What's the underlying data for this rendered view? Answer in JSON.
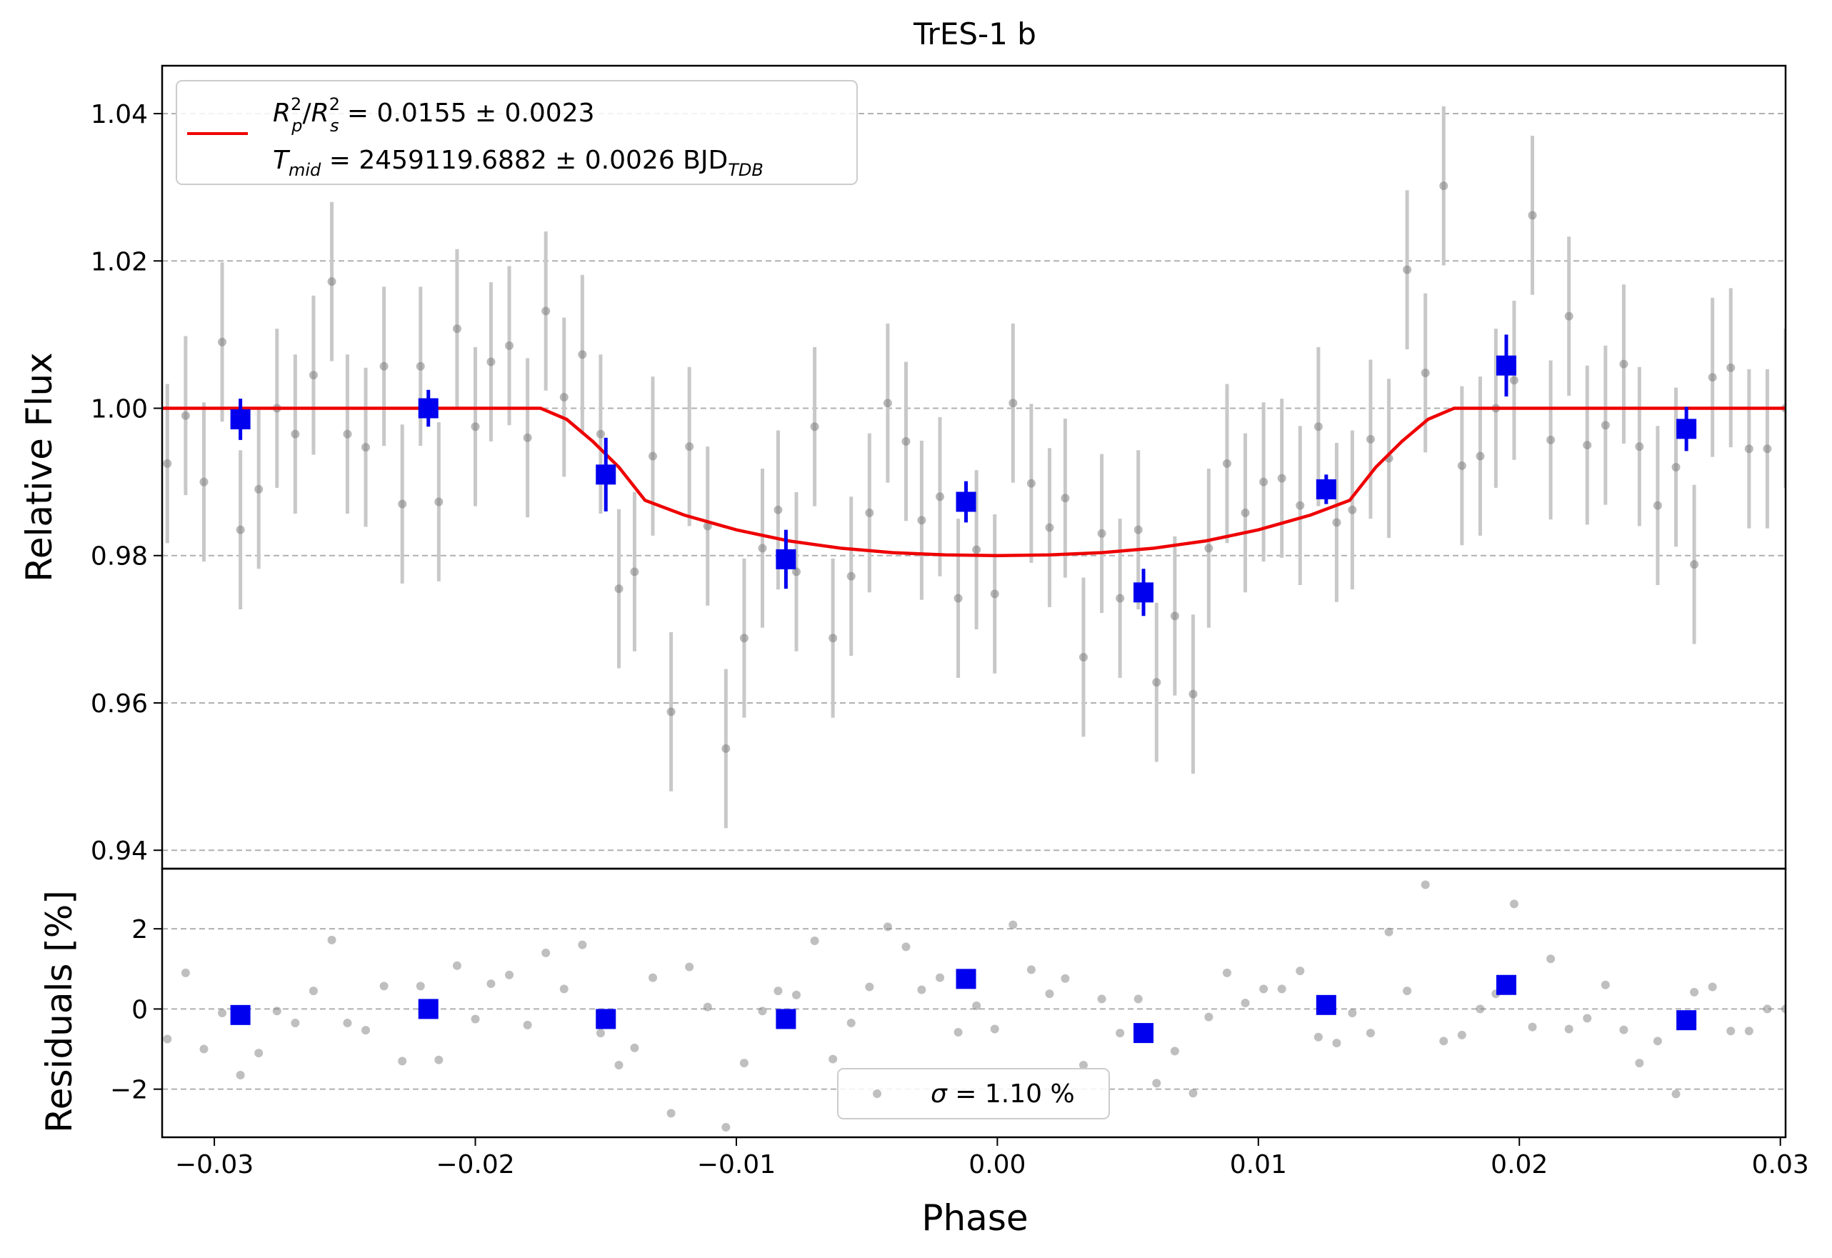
{
  "chart_data": [
    {
      "type": "scatter",
      "panel": "main",
      "title": "TrES-1 b",
      "xlabel": "",
      "ylabel": "Relative Flux",
      "xlim": [
        -0.032,
        0.0302
      ],
      "ylim": [
        0.9375,
        1.0465
      ],
      "yticks": [
        0.94,
        0.96,
        0.98,
        1.0,
        1.02,
        1.04
      ],
      "ytick_labels": [
        "0.94",
        "0.96",
        "0.98",
        "1.00",
        "1.02",
        "1.04"
      ],
      "grid": "horizontal dashed",
      "legend": {
        "placement": "top-left",
        "line1": {
          "prefix_sub1": "p",
          "prefix_sub2": "s",
          "text": " = 0.0155 ± 0.0023"
        },
        "line2": {
          "sub": "mid",
          "text": " = 2459119.6882 ± 0.0026 BJD",
          "unit_sub": "TDB"
        }
      },
      "colors": {
        "data": "#808080",
        "binned": "#0000ee",
        "model": "#ee0000",
        "grid": "#b0b0b0"
      },
      "series": [
        {
          "role": "data",
          "x": [
            -0.0318,
            -0.0311,
            -0.0304,
            -0.0297,
            -0.029,
            -0.0283,
            -0.0276,
            -0.0269,
            -0.0262,
            -0.0255,
            -0.0249,
            -0.0242,
            -0.0235,
            -0.0228,
            -0.0221,
            -0.0214,
            -0.0207,
            -0.02,
            -0.0194,
            -0.0187,
            -0.018,
            -0.0173,
            -0.0166,
            -0.0159,
            -0.0152,
            -0.0145,
            -0.0139,
            -0.0132,
            -0.0125,
            -0.0118,
            -0.0111,
            -0.0104,
            -0.0097,
            -0.009,
            -0.0084,
            -0.0077,
            -0.007,
            -0.0063,
            -0.0056,
            -0.0049,
            -0.0042,
            -0.0035,
            -0.0029,
            -0.0022,
            -0.0015,
            -0.0008,
            -0.0001,
            0.0006,
            0.0013,
            0.002,
            0.0026,
            0.0033,
            0.004,
            0.0047,
            0.0054,
            0.0061,
            0.0068,
            0.0075,
            0.0081,
            0.0088,
            0.0095,
            0.0102,
            0.0109,
            0.0116,
            0.0123,
            0.013,
            0.0136,
            0.0143,
            0.015,
            0.0157,
            0.0164,
            0.0171,
            0.0178,
            0.0185,
            0.0191,
            0.0198,
            0.0205,
            0.0212,
            0.0219,
            0.0226,
            0.0233,
            0.024,
            0.0246,
            0.0253,
            0.026,
            0.0267,
            0.0274,
            0.0281,
            0.0288,
            0.0295,
            0.0302
          ],
          "y": [
            0.9925,
            0.999,
            0.99,
            1.009,
            0.9835,
            0.989,
            1.0,
            0.9965,
            1.0045,
            1.0172,
            0.9965,
            0.9947,
            1.0057,
            0.987,
            1.0057,
            0.9873,
            1.0108,
            0.9975,
            1.0063,
            1.0085,
            0.996,
            1.0132,
            1.0015,
            1.0073,
            0.9965,
            0.9755,
            0.9778,
            0.9935,
            0.9588,
            0.9948,
            0.984,
            0.9538,
            0.9688,
            0.981,
            0.9862,
            0.9778,
            0.9975,
            0.9688,
            0.9772,
            0.9858,
            1.0007,
            0.9955,
            0.9848,
            0.988,
            0.9742,
            0.9808,
            0.9748,
            1.0007,
            0.9898,
            0.9838,
            0.9878,
            0.9662,
            0.983,
            0.9742,
            0.9835,
            0.9628,
            0.9718,
            0.9612,
            0.981,
            0.9925,
            0.9858,
            0.99,
            0.9905,
            0.9868,
            0.9975,
            0.9845,
            0.9862,
            0.9958,
            0.9932,
            1.0188,
            1.0048,
            1.0302,
            0.9922,
            0.9935,
            1.0,
            1.0038,
            1.0262,
            0.9957,
            1.0125,
            0.995,
            0.9977,
            1.006,
            0.9948,
            0.9868,
            0.992,
            0.9788,
            1.0042,
            1.0055,
            0.9945,
            0.9945,
            1.0
          ],
          "yerr": 0.0108
        },
        {
          "role": "binned",
          "x": [
            -0.029,
            -0.0218,
            -0.015,
            -0.0081,
            -0.0012,
            0.0056,
            0.0126,
            0.0195,
            0.0264
          ],
          "y": [
            0.9985,
            1.0,
            0.991,
            0.9795,
            0.9873,
            0.975,
            0.989,
            1.0058,
            0.9972
          ],
          "yerr": [
            0.0028,
            0.0025,
            0.005,
            0.004,
            0.0028,
            0.0032,
            0.002,
            0.0042,
            0.003
          ]
        },
        {
          "role": "model",
          "x": [
            -0.032,
            -0.0175,
            -0.0165,
            -0.0155,
            -0.0145,
            -0.0135,
            -0.012,
            -0.01,
            -0.008,
            -0.006,
            -0.004,
            -0.002,
            0.0,
            0.002,
            0.004,
            0.006,
            0.008,
            0.01,
            0.012,
            0.0135,
            0.0145,
            0.0155,
            0.0165,
            0.0175,
            0.0302
          ],
          "y": [
            1.0,
            1.0,
            0.9985,
            0.9955,
            0.992,
            0.9875,
            0.9855,
            0.9835,
            0.982,
            0.981,
            0.9804,
            0.9801,
            0.98,
            0.9801,
            0.9804,
            0.981,
            0.982,
            0.9835,
            0.9855,
            0.9875,
            0.992,
            0.9955,
            0.9985,
            1.0,
            1.0
          ]
        }
      ]
    },
    {
      "type": "scatter",
      "panel": "residuals",
      "xlabel": "Phase",
      "ylabel": "Residuals [%]",
      "xlim": [
        -0.032,
        0.0302
      ],
      "ylim": [
        -3.2,
        3.5
      ],
      "xticks": [
        -0.03,
        -0.02,
        -0.01,
        0.0,
        0.01,
        0.02,
        0.03
      ],
      "xtick_labels": [
        "−0.03",
        "−0.02",
        "−0.01",
        "0.00",
        "0.01",
        "0.02",
        "0.03"
      ],
      "yticks": [
        -2,
        0,
        2
      ],
      "ytick_labels": [
        "−2",
        "0",
        "2"
      ],
      "grid": "horizontal dashed",
      "legend": {
        "placement": "bottom-center",
        "symbol": "σ",
        "text": " = 1.10 %"
      },
      "series": [
        {
          "role": "residuals",
          "x": [
            -0.0318,
            -0.0311,
            -0.0304,
            -0.0297,
            -0.029,
            -0.0283,
            -0.0276,
            -0.0269,
            -0.0262,
            -0.0255,
            -0.0249,
            -0.0242,
            -0.0235,
            -0.0228,
            -0.0221,
            -0.0214,
            -0.0207,
            -0.02,
            -0.0194,
            -0.0187,
            -0.018,
            -0.0173,
            -0.0166,
            -0.0159,
            -0.0152,
            -0.0145,
            -0.0139,
            -0.0132,
            -0.0125,
            -0.0118,
            -0.0111,
            -0.0104,
            -0.0097,
            -0.009,
            -0.0084,
            -0.0077,
            -0.007,
            -0.0063,
            -0.0056,
            -0.0049,
            -0.0042,
            -0.0035,
            -0.0029,
            -0.0022,
            -0.0015,
            -0.0008,
            -0.0001,
            0.0006,
            0.0013,
            0.002,
            0.0026,
            0.0033,
            0.004,
            0.0047,
            0.0054,
            0.0061,
            0.0068,
            0.0075,
            0.0081,
            0.0088,
            0.0095,
            0.0102,
            0.0109,
            0.0116,
            0.0123,
            0.013,
            0.0136,
            0.0143,
            0.015,
            0.0157,
            0.0164,
            0.0171,
            0.0178,
            0.0185,
            0.0191,
            0.0198,
            0.0205,
            0.0212,
            0.0219,
            0.0226,
            0.0233,
            0.024,
            0.0246,
            0.0253,
            0.026,
            0.0267,
            0.0274,
            0.0281,
            0.0288,
            0.0295,
            0.0302
          ],
          "y": [
            -0.75,
            0.9,
            -1.0,
            -0.1,
            -1.65,
            -1.1,
            -0.05,
            -0.35,
            0.45,
            1.72,
            -0.35,
            -0.53,
            0.57,
            -1.3,
            0.57,
            -1.27,
            1.08,
            -0.25,
            0.63,
            0.85,
            -0.4,
            1.4,
            0.5,
            1.6,
            -0.6,
            -1.4,
            -0.97,
            0.78,
            -2.6,
            1.05,
            0.05,
            -2.95,
            -1.35,
            -0.05,
            0.45,
            0.35,
            1.7,
            -1.25,
            -0.35,
            0.55,
            2.05,
            1.55,
            0.48,
            0.78,
            -0.58,
            0.08,
            -0.5,
            2.1,
            0.98,
            0.38,
            0.76,
            -1.4,
            0.25,
            -0.6,
            0.25,
            -1.85,
            -1.05,
            -2.1,
            -0.2,
            0.9,
            0.15,
            0.5,
            0.5,
            0.95,
            -0.7,
            -0.85,
            -0.1,
            -0.6,
            1.92,
            0.45,
            3.1,
            -0.8,
            -0.65,
            0.0,
            0.38,
            2.62,
            -0.45,
            1.25,
            -0.5,
            -0.23,
            0.6,
            -0.52,
            -1.35,
            -0.8,
            -2.12,
            0.42,
            0.55,
            -0.55,
            -0.55,
            0.0,
            0.0
          ],
          "color": "#808080"
        },
        {
          "role": "binned",
          "x": [
            -0.029,
            -0.0218,
            -0.015,
            -0.0081,
            -0.0012,
            0.0056,
            0.0126,
            0.0195,
            0.0264
          ],
          "y": [
            -0.15,
            0.0,
            -0.25,
            -0.25,
            0.75,
            -0.6,
            0.1,
            0.6,
            -0.28
          ],
          "color": "#0000ee"
        }
      ]
    }
  ]
}
